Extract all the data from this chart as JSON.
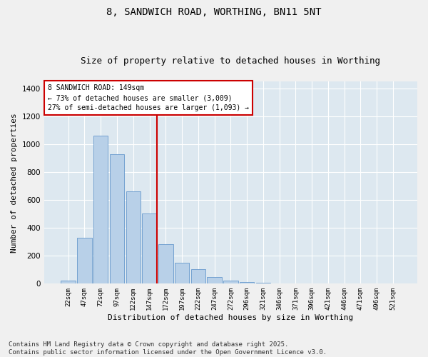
{
  "title1": "8, SANDWICH ROAD, WORTHING, BN11 5NT",
  "title2": "Size of property relative to detached houses in Worthing",
  "xlabel": "Distribution of detached houses by size in Worthing",
  "ylabel": "Number of detached properties",
  "categories": [
    "22sqm",
    "47sqm",
    "72sqm",
    "97sqm",
    "122sqm",
    "147sqm",
    "172sqm",
    "197sqm",
    "222sqm",
    "247sqm",
    "272sqm",
    "296sqm",
    "321sqm",
    "346sqm",
    "371sqm",
    "396sqm",
    "421sqm",
    "446sqm",
    "471sqm",
    "496sqm",
    "521sqm"
  ],
  "values": [
    20,
    330,
    1060,
    930,
    660,
    505,
    285,
    150,
    105,
    48,
    20,
    13,
    8,
    0,
    0,
    0,
    0,
    0,
    0,
    0,
    0
  ],
  "bar_color": "#b8d0e8",
  "bar_edge_color": "#6699cc",
  "vline_color": "#cc0000",
  "annotation_text": "8 SANDWICH ROAD: 149sqm\n← 73% of detached houses are smaller (3,009)\n27% of semi-detached houses are larger (1,093) →",
  "annotation_box_color": "#cc0000",
  "ylim": [
    0,
    1450
  ],
  "yticks": [
    0,
    200,
    400,
    600,
    800,
    1000,
    1200,
    1400
  ],
  "background_color": "#dde8f0",
  "grid_color": "#ffffff",
  "fig_background": "#f0f0f0",
  "footer": "Contains HM Land Registry data © Crown copyright and database right 2025.\nContains public sector information licensed under the Open Government Licence v3.0.",
  "title_fontsize": 10,
  "subtitle_fontsize": 9,
  "annotation_fontsize": 7,
  "footer_fontsize": 6.5,
  "ylabel_fontsize": 8,
  "xlabel_fontsize": 8
}
